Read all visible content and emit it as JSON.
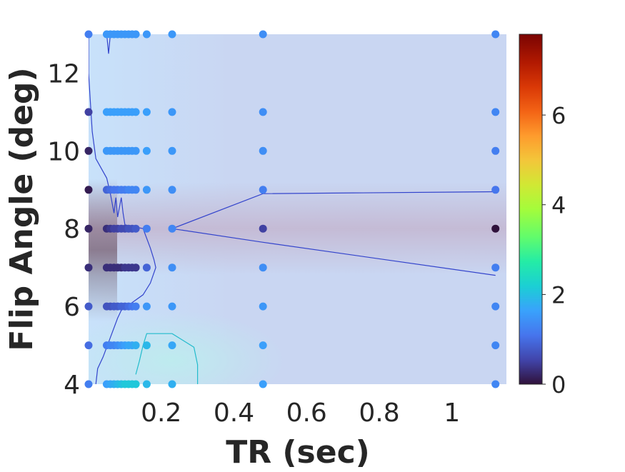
{
  "chart_data": {
    "type": "scatter",
    "title": "",
    "xlabel": "TR (sec)",
    "ylabel": "Flip Angle (deg)",
    "xlim": [
      0.0,
      1.15
    ],
    "ylim": [
      4,
      13
    ],
    "x_tick_values": [
      0.2,
      0.4,
      0.6,
      0.8,
      1.0
    ],
    "x_tick_labels": [
      "0.2",
      "0.4",
      "0.6",
      "0.8",
      "1"
    ],
    "y_tick_values": [
      4,
      6,
      8,
      10,
      12
    ],
    "y_tick_labels": [
      "4",
      "6",
      "8",
      "10",
      "12"
    ],
    "colorbar": {
      "colormap": "turbo",
      "range": [
        0,
        7.8
      ],
      "tick_values": [
        0,
        2,
        4,
        6
      ],
      "tick_labels": [
        "0",
        "2",
        "4",
        "6"
      ]
    },
    "grid": false,
    "background_colors": {
      "field_blue": "#c9d6f2",
      "band_mauve": "#c4b8d2",
      "low_cyan": "#bdecee",
      "left_light": "#c8e2fb",
      "left_dark": "#5b3a4a"
    },
    "contour_colors": [
      "#3344cc",
      "#22bbcc"
    ],
    "series": [
      {
        "points": [
          [
            0.0,
            4,
            1.2
          ],
          [
            0.0,
            5,
            1.0
          ],
          [
            0.0,
            6,
            0.8
          ],
          [
            0.0,
            7,
            0.3
          ],
          [
            0.0,
            8,
            0.2
          ],
          [
            0.0,
            9,
            0.1
          ],
          [
            0.0,
            10,
            0.2
          ],
          [
            0.0,
            11,
            0.5
          ],
          [
            0.0,
            13,
            1.2
          ],
          [
            0.05,
            4,
            1.6
          ],
          [
            0.05,
            5,
            1.2
          ],
          [
            0.05,
            6,
            0.7
          ],
          [
            0.05,
            7,
            0.3
          ],
          [
            0.05,
            8,
            0.3
          ],
          [
            0.05,
            9,
            0.9
          ],
          [
            0.05,
            10,
            1.5
          ],
          [
            0.05,
            11,
            1.6
          ],
          [
            0.05,
            13,
            1.5
          ],
          [
            0.06,
            4,
            1.7
          ],
          [
            0.06,
            5,
            1.3
          ],
          [
            0.06,
            6,
            0.7
          ],
          [
            0.06,
            7,
            0.3
          ],
          [
            0.06,
            8,
            0.4
          ],
          [
            0.06,
            9,
            1.0
          ],
          [
            0.06,
            10,
            1.5
          ],
          [
            0.06,
            11,
            1.6
          ],
          [
            0.06,
            13,
            1.5
          ],
          [
            0.07,
            4,
            1.8
          ],
          [
            0.07,
            5,
            1.3
          ],
          [
            0.07,
            6,
            0.8
          ],
          [
            0.07,
            7,
            0.3
          ],
          [
            0.07,
            8,
            0.5
          ],
          [
            0.07,
            9,
            1.1
          ],
          [
            0.07,
            10,
            1.5
          ],
          [
            0.07,
            11,
            1.6
          ],
          [
            0.07,
            13,
            1.5
          ],
          [
            0.08,
            4,
            1.9
          ],
          [
            0.08,
            5,
            1.4
          ],
          [
            0.08,
            6,
            0.8
          ],
          [
            0.08,
            7,
            0.3
          ],
          [
            0.08,
            8,
            0.5
          ],
          [
            0.08,
            9,
            1.1
          ],
          [
            0.08,
            10,
            1.5
          ],
          [
            0.08,
            11,
            1.6
          ],
          [
            0.08,
            13,
            1.5
          ],
          [
            0.09,
            4,
            2.0
          ],
          [
            0.09,
            5,
            1.5
          ],
          [
            0.09,
            6,
            0.9
          ],
          [
            0.09,
            7,
            0.3
          ],
          [
            0.09,
            8,
            0.6
          ],
          [
            0.09,
            9,
            1.2
          ],
          [
            0.09,
            10,
            1.5
          ],
          [
            0.09,
            11,
            1.6
          ],
          [
            0.09,
            13,
            1.5
          ],
          [
            0.1,
            4,
            2.1
          ],
          [
            0.1,
            5,
            1.6
          ],
          [
            0.1,
            6,
            0.9
          ],
          [
            0.1,
            7,
            0.4
          ],
          [
            0.1,
            8,
            0.6
          ],
          [
            0.1,
            9,
            1.2
          ],
          [
            0.1,
            10,
            1.5
          ],
          [
            0.1,
            11,
            1.6
          ],
          [
            0.1,
            13,
            1.5
          ],
          [
            0.11,
            4,
            2.1
          ],
          [
            0.11,
            5,
            1.7
          ],
          [
            0.11,
            6,
            1.0
          ],
          [
            0.11,
            7,
            0.4
          ],
          [
            0.11,
            8,
            0.7
          ],
          [
            0.11,
            9,
            1.3
          ],
          [
            0.11,
            10,
            1.5
          ],
          [
            0.11,
            11,
            1.6
          ],
          [
            0.11,
            13,
            1.5
          ],
          [
            0.12,
            4,
            2.1
          ],
          [
            0.12,
            5,
            1.7
          ],
          [
            0.12,
            6,
            1.1
          ],
          [
            0.12,
            7,
            0.4
          ],
          [
            0.12,
            8,
            0.7
          ],
          [
            0.12,
            9,
            1.3
          ],
          [
            0.12,
            10,
            1.5
          ],
          [
            0.12,
            11,
            1.6
          ],
          [
            0.12,
            13,
            1.5
          ],
          [
            0.13,
            4,
            2.1
          ],
          [
            0.13,
            5,
            1.8
          ],
          [
            0.13,
            6,
            1.2
          ],
          [
            0.13,
            7,
            0.4
          ],
          [
            0.13,
            8,
            0.8
          ],
          [
            0.13,
            9,
            1.3
          ],
          [
            0.13,
            10,
            1.5
          ],
          [
            0.13,
            11,
            1.6
          ],
          [
            0.13,
            13,
            1.5
          ],
          [
            0.16,
            4,
            1.9
          ],
          [
            0.16,
            5,
            1.9
          ],
          [
            0.16,
            6,
            1.5
          ],
          [
            0.16,
            7,
            0.9
          ],
          [
            0.16,
            8,
            1.2
          ],
          [
            0.16,
            9,
            1.5
          ],
          [
            0.16,
            10,
            1.6
          ],
          [
            0.16,
            11,
            1.6
          ],
          [
            0.16,
            13,
            1.5
          ],
          [
            0.23,
            4,
            1.8
          ],
          [
            0.23,
            5,
            1.7
          ],
          [
            0.23,
            6,
            1.5
          ],
          [
            0.23,
            7,
            1.4
          ],
          [
            0.23,
            8,
            1.3
          ],
          [
            0.23,
            9,
            1.4
          ],
          [
            0.23,
            10,
            1.5
          ],
          [
            0.23,
            11,
            1.5
          ],
          [
            0.23,
            13,
            1.5
          ],
          [
            0.48,
            4,
            1.6
          ],
          [
            0.48,
            5,
            1.6
          ],
          [
            0.48,
            6,
            1.5
          ],
          [
            0.48,
            7,
            1.4
          ],
          [
            0.48,
            8,
            0.5
          ],
          [
            0.48,
            9,
            1.2
          ],
          [
            0.48,
            10,
            1.4
          ],
          [
            0.48,
            11,
            1.4
          ],
          [
            0.48,
            13,
            1.4
          ],
          [
            1.12,
            4,
            1.3
          ],
          [
            1.12,
            5,
            1.3
          ],
          [
            1.12,
            6,
            1.3
          ],
          [
            1.12,
            7,
            1.2
          ],
          [
            1.12,
            8,
            0.0
          ],
          [
            1.12,
            9,
            1.1
          ],
          [
            1.12,
            10,
            1.2
          ],
          [
            1.12,
            11,
            1.3
          ],
          [
            1.12,
            13,
            1.3
          ]
        ]
      }
    ],
    "contours": [
      {
        "level_color": "#3344cc",
        "points": [
          [
            0.0,
            13
          ],
          [
            0.0,
            12.0
          ],
          [
            0.01,
            10.5
          ],
          [
            0.02,
            9.8
          ],
          [
            0.05,
            9.3
          ],
          [
            0.06,
            8.9
          ],
          [
            0.07,
            8.4
          ],
          [
            0.075,
            8.8
          ],
          [
            0.08,
            8.3
          ],
          [
            0.09,
            8.8
          ],
          [
            0.095,
            8.4
          ],
          [
            0.1,
            8.1
          ],
          [
            0.15,
            8.0
          ],
          [
            0.17,
            7.5
          ],
          [
            0.18,
            7.2
          ],
          [
            0.185,
            7.0
          ],
          [
            0.17,
            6.6
          ],
          [
            0.15,
            6.3
          ],
          [
            0.12,
            6.1
          ],
          [
            0.09,
            5.9
          ],
          [
            0.08,
            5.7
          ],
          [
            0.06,
            5.2
          ],
          [
            0.04,
            4.7
          ],
          [
            0.025,
            4.4
          ],
          [
            0.02,
            4.0
          ]
        ]
      },
      {
        "level_color": "#3344cc",
        "points": [
          [
            0.05,
            13
          ],
          [
            0.055,
            12.5
          ],
          [
            0.06,
            13
          ]
        ]
      },
      {
        "level_color": "#3344cc",
        "points": [
          [
            1.12,
            8.95
          ],
          [
            0.48,
            8.9
          ],
          [
            0.23,
            8.0
          ],
          [
            0.48,
            7.65
          ],
          [
            1.12,
            6.8
          ]
        ]
      },
      {
        "level_color": "#22bbcc",
        "points": [
          [
            0.13,
            4.25
          ],
          [
            0.14,
            4.6
          ],
          [
            0.15,
            5.0
          ],
          [
            0.16,
            5.3
          ],
          [
            0.23,
            5.3
          ],
          [
            0.29,
            4.95
          ],
          [
            0.3,
            4.5
          ],
          [
            0.3,
            4.0
          ]
        ]
      }
    ]
  }
}
